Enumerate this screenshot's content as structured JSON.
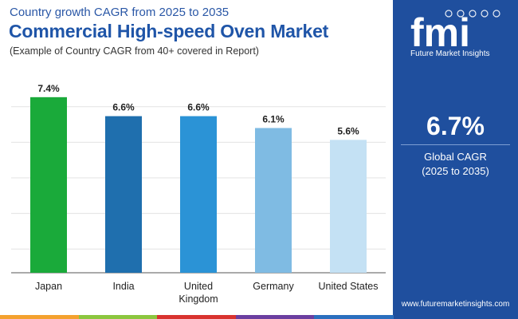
{
  "header": {
    "top_line": "Country growth CAGR from 2025 to 2035",
    "title": "Commercial High-speed Oven Market",
    "note": "(Example of Country CAGR from 40+ covered in Report)"
  },
  "chart_data": {
    "type": "bar",
    "title": "Commercial High-speed Oven Market",
    "categories": [
      "Japan",
      "India",
      "United Kingdom",
      "Germany",
      "United States"
    ],
    "category_label_lines": [
      [
        "Japan"
      ],
      [
        "India"
      ],
      [
        "United",
        "Kingdom"
      ],
      [
        "Germany"
      ],
      [
        "United States"
      ]
    ],
    "values": [
      7.4,
      6.6,
      6.6,
      6.1,
      5.6
    ],
    "data_labels": [
      "7.4%",
      "6.6%",
      "6.6%",
      "6.1%",
      "5.6%"
    ],
    "bar_colors": [
      "#1aaa3a",
      "#1f6fae",
      "#2b93d6",
      "#7fbbe3",
      "#c4e1f4"
    ],
    "xlabel": "",
    "ylabel": "",
    "ylim": [
      0,
      8
    ],
    "grid": true,
    "legend": "none"
  },
  "side_panel": {
    "logo_letters": "fmi",
    "logo_caption": "Future Market Insights",
    "kpi_value": "6.7%",
    "kpi_label": "Global CAGR",
    "kpi_period": "(2025 to 2035)",
    "website": "www.futuremarketinsights.com"
  },
  "colors": {
    "panel": "#1f4f9e",
    "title": "#1f55a8",
    "strip": [
      "#f4a12e",
      "#8cc63f",
      "#d9332f",
      "#6b3fa0",
      "#2b6fbe"
    ]
  }
}
